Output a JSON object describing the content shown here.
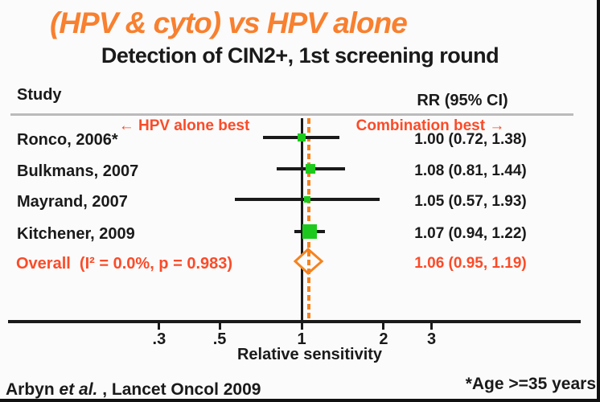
{
  "title": "(HPV & cyto) vs HPV alone",
  "subtitle": "Detection of CIN2+, 1st screening round",
  "colors": {
    "title_orange": "#F8802F",
    "red_orange": "#FB4B28",
    "diamond_orange": "#F5831F",
    "marker_green": "#1EC91E",
    "rule_gray": "#BBBBBB",
    "text_black": "#1A1A1A",
    "background": "#FBFBFB"
  },
  "footer": {
    "left_pre": "Arbyn ",
    "left_italic": "et al.",
    "left_post": " , Lancet Oncol 2009",
    "right": "*Age >=35 years"
  },
  "chart_data": {
    "type": "scatter",
    "subtype": "forest-plot",
    "title": "(HPV & cyto) vs HPV alone",
    "subtitle": "Detection of CIN2+, 1st screening round",
    "column_headers": {
      "study": "Study",
      "rr": "RR (95% CI)"
    },
    "direction_labels": {
      "left": "← HPV alone best",
      "right": "Combination best →"
    },
    "xlabel": "Relative sensitivity",
    "x_scale": "log",
    "x_ticks": [
      {
        "value": 0.3,
        "label": ".3"
      },
      {
        "value": 0.5,
        "label": ".5"
      },
      {
        "value": 1,
        "label": "1"
      },
      {
        "value": 2,
        "label": "2"
      },
      {
        "value": 3,
        "label": "3"
      }
    ],
    "x_range": [
      0.25,
      4.0
    ],
    "null_line_value": 1,
    "overall_line_value": 1.06,
    "studies": [
      {
        "label": "Ronco, 2006*",
        "rr": 1.0,
        "ci_low": 0.72,
        "ci_high": 1.38,
        "rr_text": "1.00 (0.72, 1.38)",
        "marker_size": 10
      },
      {
        "label": "Bulkmans, 2007",
        "rr": 1.08,
        "ci_low": 0.81,
        "ci_high": 1.44,
        "rr_text": "1.08 (0.81, 1.44)",
        "marker_size": 12
      },
      {
        "label": "Mayrand, 2007",
        "rr": 1.05,
        "ci_low": 0.57,
        "ci_high": 1.93,
        "rr_text": "1.05 (0.57, 1.93)",
        "marker_size": 8
      },
      {
        "label": "Kitchener, 2009",
        "rr": 1.07,
        "ci_low": 0.94,
        "ci_high": 1.22,
        "rr_text": "1.07 (0.94, 1.22)",
        "marker_size": 18
      }
    ],
    "overall": {
      "label": "Overall  (I² = 0.0%, p = 0.983)",
      "rr": 1.06,
      "ci_low": 0.95,
      "ci_high": 1.19,
      "rr_text": "1.06 (0.95, 1.19)"
    }
  }
}
